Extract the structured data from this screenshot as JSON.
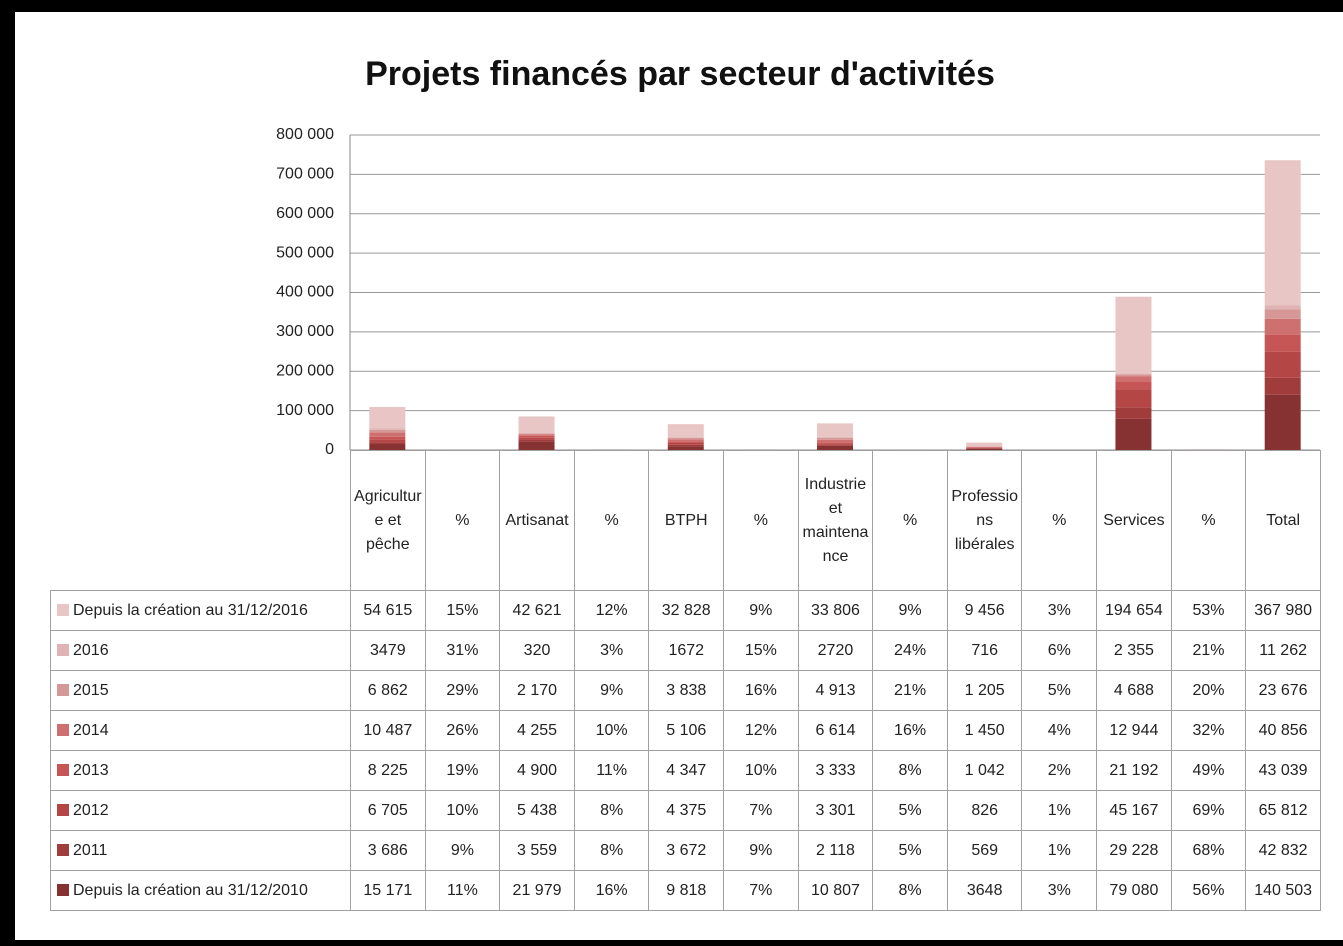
{
  "chart_data": {
    "type": "stacked_bar",
    "title": "Projets financés par secteur d'activités",
    "categories": [
      "Agriculture et pêche",
      "%",
      "Artisanat",
      "%",
      "BTPH",
      "%",
      "Industrie et maintenance",
      "%",
      "Professions libérales",
      "%",
      "Services",
      "%",
      "Total"
    ],
    "ylim": [
      0,
      800000
    ],
    "yticks": [
      0,
      {
        "value": 100000,
        "label": "100 000"
      },
      {
        "value": 200000,
        "label": "200 000"
      },
      {
        "value": 300000,
        "label": "300 000"
      },
      {
        "value": 400000,
        "label": "400 000"
      },
      {
        "value": 500000,
        "label": "500 000"
      },
      {
        "value": 600000,
        "label": "600 000"
      },
      {
        "value": 700000,
        "label": "700 000"
      },
      {
        "value": 800000,
        "label": "800 000"
      }
    ],
    "grid": true,
    "series": [
      {
        "name": "Depuis la création au 31/12/2016",
        "color": "#e8c6c6",
        "values": [
          54615,
          15,
          42621,
          12,
          32828,
          9,
          33806,
          9,
          9456,
          3,
          194654,
          53,
          367980
        ],
        "value_labels": [
          "54 615",
          "15%",
          "42 621",
          "12%",
          "32 828",
          "9%",
          "33 806",
          "9%",
          "9 456",
          "3%",
          "194 654",
          "53%",
          "367 980"
        ]
      },
      {
        "name": "2016",
        "color": "#e0b4b4",
        "values": [
          3479,
          31,
          320,
          3,
          1672,
          15,
          2720,
          24,
          716,
          6,
          2355,
          21,
          11262
        ],
        "value_labels": [
          "3479",
          "31%",
          "320",
          "3%",
          "1672",
          "15%",
          "2720",
          "24%",
          "716",
          "6%",
          "2 355",
          "21%",
          "11 262"
        ]
      },
      {
        "name": "2015",
        "color": "#d69797",
        "values": [
          6862,
          29,
          2170,
          9,
          3838,
          16,
          4913,
          21,
          1205,
          5,
          4688,
          20,
          23676
        ],
        "value_labels": [
          "6 862",
          "29%",
          "2 170",
          "9%",
          "3 838",
          "16%",
          "4 913",
          "21%",
          "1 205",
          "5%",
          "4 688",
          "20%",
          "23 676"
        ]
      },
      {
        "name": "2014",
        "color": "#cf7070",
        "values": [
          10487,
          26,
          4255,
          10,
          5106,
          12,
          6614,
          16,
          1450,
          4,
          12944,
          32,
          40856
        ],
        "value_labels": [
          "10 487",
          "26%",
          "4 255",
          "10%",
          "5 106",
          "12%",
          "6 614",
          "16%",
          "1 450",
          "4%",
          "12 944",
          "32%",
          "40 856"
        ]
      },
      {
        "name": "2013",
        "color": "#c65555",
        "values": [
          8225,
          19,
          4900,
          11,
          4347,
          10,
          3333,
          8,
          1042,
          2,
          21192,
          49,
          43039
        ],
        "value_labels": [
          "8 225",
          "19%",
          "4 900",
          "11%",
          "4 347",
          "10%",
          "3 333",
          "8%",
          "1 042",
          "2%",
          "21 192",
          "49%",
          "43 039"
        ]
      },
      {
        "name": "2012",
        "color": "#b54646",
        "values": [
          6705,
          10,
          5438,
          8,
          4375,
          7,
          3301,
          5,
          826,
          1,
          45167,
          69,
          65812
        ],
        "value_labels": [
          "6 705",
          "10%",
          "5 438",
          "8%",
          "4 375",
          "7%",
          "3 301",
          "5%",
          "826",
          "1%",
          "45 167",
          "69%",
          "65 812"
        ]
      },
      {
        "name": "2011",
        "color": "#a03c3c",
        "values": [
          3686,
          9,
          3559,
          8,
          3672,
          9,
          2118,
          5,
          569,
          1,
          29228,
          68,
          42832
        ],
        "value_labels": [
          "3 686",
          "9%",
          "3 559",
          "8%",
          "3 672",
          "9%",
          "2 118",
          "5%",
          "569",
          "1%",
          "29 228",
          "68%",
          "42 832"
        ]
      },
      {
        "name": "Depuis la création au 31/12/2010",
        "color": "#873232",
        "values": [
          15171,
          11,
          21979,
          16,
          9818,
          7,
          10807,
          8,
          3648,
          3,
          79080,
          56,
          140503
        ],
        "value_labels": [
          "15 171",
          "11%",
          "21 979",
          "16%",
          "9 818",
          "7%",
          "10 807",
          "8%",
          "3648",
          "3%",
          "79 080",
          "56%",
          "140 503"
        ]
      }
    ]
  }
}
